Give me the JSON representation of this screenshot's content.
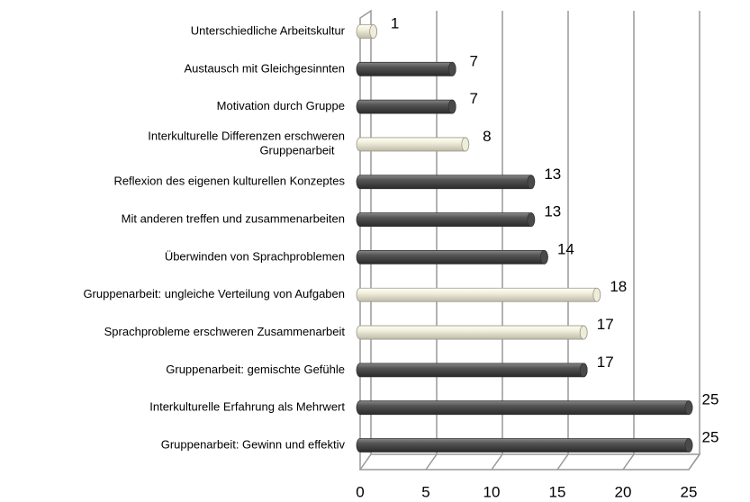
{
  "chart_data": {
    "type": "hbar",
    "categories": [
      "Unterschiedliche Arbeitskultur",
      "Austausch mit Gleichgesinnten",
      "Motivation durch Gruppe",
      [
        "Interkulturelle Differenzen erschweren",
        "Gruppenarbeit"
      ],
      "Reflexion des eigenen kulturellen Konzeptes",
      "Mit anderen treffen und zusammenarbeiten",
      "Überwinden von Sprachproblemen",
      "Gruppenarbeit: ungleiche Verteilung von Aufgaben",
      "Sprachprobleme erschweren Zusammenarbeit",
      "Gruppenarbeit: gemischte Gefühle",
      "Interkulturelle Erfahrung als Mehrwert",
      "Gruppenarbeit: Gewinn und effektiv"
    ],
    "values": [
      1,
      7,
      7,
      8,
      13,
      13,
      14,
      18,
      17,
      17,
      25,
      25
    ],
    "colors": [
      "#efedda",
      "#4a4a4a",
      "#4a4a4a",
      "#efedda",
      "#4a4a4a",
      "#4a4a4a",
      "#4a4a4a",
      "#efedda",
      "#efedda",
      "#4a4a4a",
      "#4a4a4a",
      "#4a4a4a"
    ],
    "xlim": [
      0,
      25
    ],
    "xticks": [
      0,
      5,
      10,
      15,
      20,
      25
    ],
    "grid": true
  }
}
